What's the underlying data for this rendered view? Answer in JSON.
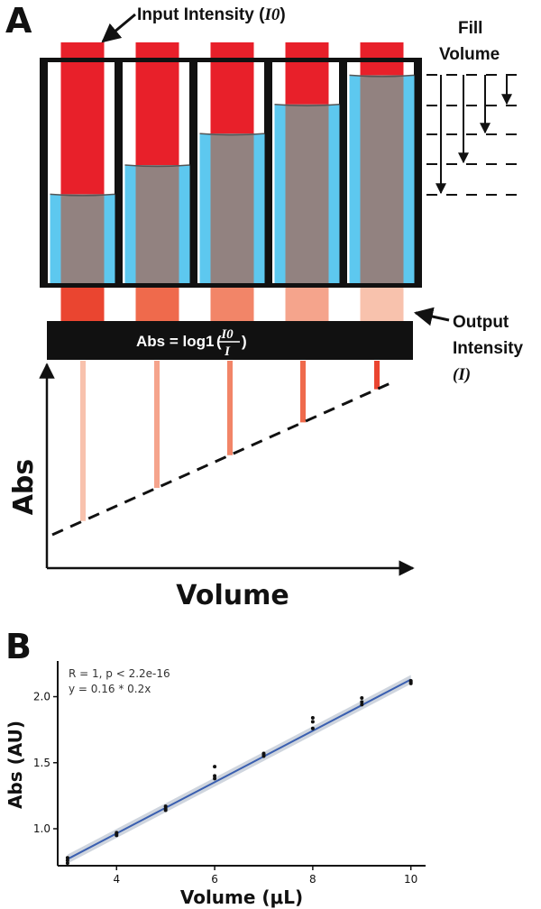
{
  "panel_a": {
    "letter": "A",
    "input_label": "Input Intensity (",
    "input_symbol": "I0",
    "input_close": ")",
    "fill_label_1": "Fill",
    "fill_label_2": "Volume",
    "output_label_1": "Output",
    "output_label_2": "Intensity",
    "output_symbol": "(I)",
    "equation_prefix": "Abs = log1",
    "equation_numerator": "I0",
    "equation_denominator": "I",
    "equation_close": ")",
    "y_axis_label": "Abs",
    "x_axis_label": "Volume",
    "fill_fractions": [
      0.4,
      0.53,
      0.67,
      0.8,
      0.93
    ],
    "output_colors": [
      "#ea4530",
      "#ef6a4c",
      "#f28568",
      "#f5a48c",
      "#f8c2ad"
    ],
    "colors": {
      "input_red": "#e8202a",
      "liquid_blue": "#5dc8ef",
      "liquid_gray": "#928280",
      "frame": "#111111"
    }
  },
  "panel_b": {
    "letter": "B",
    "stats_line_1": "R = 1, p < 2.2e-16",
    "stats_line_2": "y = 0.16 * 0.2x",
    "fit_color": "#3a5fb0",
    "band_color": "#c3cbd6"
  },
  "chart_data": {
    "type": "scatter",
    "xlabel": "Volume (μL)",
    "ylabel": "Abs (AU)",
    "xlim": [
      2.8,
      10.3
    ],
    "ylim": [
      0.72,
      2.27
    ],
    "xticks": [
      4,
      6,
      8,
      10
    ],
    "yticks": [
      1.0,
      1.5,
      2.0
    ],
    "grid": false,
    "series": [
      {
        "x": [
          3,
          3,
          3,
          4,
          4,
          4,
          5,
          5,
          5,
          6,
          6,
          6,
          7,
          7,
          7,
          8,
          8,
          8,
          9,
          9,
          9,
          10,
          10,
          10
        ],
        "y": [
          0.78,
          0.74,
          0.76,
          0.97,
          0.95,
          0.96,
          1.14,
          1.17,
          1.15,
          1.47,
          1.4,
          1.38,
          1.57,
          1.55,
          1.56,
          1.84,
          1.81,
          1.76,
          1.99,
          1.96,
          1.94,
          2.11,
          2.1,
          2.12
        ]
      }
    ],
    "fit": {
      "x": [
        3,
        10
      ],
      "y": [
        0.77,
        2.13
      ]
    }
  }
}
